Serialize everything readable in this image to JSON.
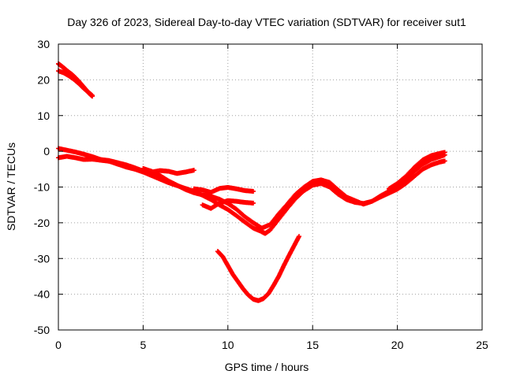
{
  "chart_data": {
    "type": "scatter",
    "title": "Day 326 of 2023, Sidereal Day-to-day VTEC variation (SDTVAR) for receiver sut1",
    "xlabel": "GPS time / hours",
    "ylabel": "SDTVAR / TECUs",
    "xlim": [
      0,
      25
    ],
    "ylim": [
      -50,
      30
    ],
    "xticks": [
      0,
      5,
      10,
      15,
      20,
      25
    ],
    "yticks": [
      -50,
      -40,
      -30,
      -20,
      -10,
      0,
      10,
      20,
      30
    ],
    "grid": true,
    "marker_color": "#ff0000",
    "series": [
      {
        "name": "segment-high-start",
        "x": [
          0.0,
          0.2,
          0.4,
          0.6,
          0.8,
          1.0,
          1.2,
          1.4,
          1.6,
          1.8,
          2.0
        ],
        "y": [
          24.5,
          23.8,
          23.0,
          22.2,
          21.5,
          20.6,
          19.6,
          18.5,
          17.4,
          16.3,
          15.4
        ]
      },
      {
        "name": "segment-high-start-b",
        "x": [
          0.0,
          0.3,
          0.6,
          0.9,
          1.2,
          1.5,
          1.8,
          2.0
        ],
        "y": [
          22.5,
          22.0,
          21.2,
          20.2,
          19.0,
          17.6,
          16.4,
          15.6
        ]
      },
      {
        "name": "segment-main-a",
        "x": [
          0.0,
          0.5,
          1.0,
          1.5,
          2.0,
          2.5,
          3.0,
          3.5,
          4.0,
          4.5,
          5.0,
          5.5,
          6.0,
          6.5,
          7.0,
          7.5,
          8.0
        ],
        "y": [
          0.8,
          0.3,
          -0.2,
          -0.8,
          -1.5,
          -2.3,
          -2.6,
          -3.2,
          -3.8,
          -4.6,
          -5.5,
          -5.8,
          -5.4,
          -5.6,
          -6.2,
          -5.8,
          -5.3
        ]
      },
      {
        "name": "segment-main-b",
        "x": [
          0.0,
          0.5,
          1.0,
          1.5,
          2.0,
          2.5,
          3.0,
          3.5,
          4.0,
          4.5,
          5.0,
          5.5,
          6.0,
          6.5,
          7.0,
          7.5,
          8.0,
          8.5,
          9.0,
          9.5,
          10.0,
          10.5,
          11.0,
          11.5,
          12.0,
          12.2,
          12.5,
          13.0,
          13.5,
          14.0,
          14.5,
          15.0,
          15.5,
          16.0,
          16.5,
          17.0,
          17.5,
          18.0,
          18.5,
          19.0,
          19.5,
          20.0,
          20.5,
          21.0,
          21.5,
          22.0,
          22.5,
          22.8
        ],
        "y": [
          -1.8,
          -1.4,
          -1.8,
          -2.3,
          -2.2,
          -2.5,
          -2.8,
          -3.6,
          -4.4,
          -5.0,
          -5.8,
          -6.8,
          -7.8,
          -8.8,
          -9.6,
          -10.4,
          -11.2,
          -12.3,
          -13.5,
          -15.0,
          -16.3,
          -18.0,
          -19.8,
          -21.5,
          -22.5,
          -23.0,
          -22.0,
          -19.0,
          -16.0,
          -13.2,
          -11.0,
          -9.5,
          -9.0,
          -10.0,
          -12.0,
          -13.5,
          -14.3,
          -14.6,
          -14.0,
          -12.8,
          -11.7,
          -10.6,
          -9.0,
          -7.0,
          -5.0,
          -3.8,
          -3.0,
          -2.7
        ]
      },
      {
        "name": "segment-main-c",
        "x": [
          5.0,
          5.5,
          6.0,
          6.5,
          7.0,
          7.5,
          8.0,
          8.5,
          9.0,
          9.5,
          10.0,
          10.5,
          11.0,
          11.5,
          12.0,
          12.5,
          13.0,
          13.5,
          14.0,
          14.5,
          15.0,
          15.5,
          16.0,
          16.5,
          17.0,
          17.5,
          18.0,
          18.5,
          19.0,
          19.5,
          20.0,
          20.5,
          21.0,
          21.5,
          22.0,
          22.5,
          22.8
        ],
        "y": [
          -4.8,
          -5.6,
          -6.8,
          -8.3,
          -9.5,
          -10.7,
          -11.6,
          -12.2,
          -12.6,
          -13.4,
          -14.6,
          -16.2,
          -18.3,
          -20.0,
          -21.5,
          -20.5,
          -17.5,
          -14.8,
          -12.0,
          -10.0,
          -8.4,
          -8.0,
          -8.7,
          -10.8,
          -12.8,
          -13.8,
          -14.8,
          -14.0,
          -12.5,
          -11.2,
          -10.0,
          -8.0,
          -5.6,
          -3.6,
          -2.3,
          -1.5,
          -1.0
        ]
      },
      {
        "name": "segment-cluster-9",
        "x": [
          8.0,
          8.5,
          9.0,
          9.5,
          10.0,
          10.5,
          11.0,
          11.5
        ],
        "y": [
          -10.5,
          -10.8,
          -11.5,
          -10.4,
          -10.1,
          -10.5,
          -11.0,
          -11.2
        ]
      },
      {
        "name": "segment-cluster-9b",
        "x": [
          8.5,
          9.0,
          9.5,
          10.0,
          10.5,
          11.0,
          11.5
        ],
        "y": [
          -15.0,
          -16.0,
          -14.5,
          -13.8,
          -14.0,
          -14.3,
          -14.5
        ]
      },
      {
        "name": "segment-deep-dip",
        "x": [
          9.4,
          9.7,
          10.0,
          10.3,
          10.6,
          10.9,
          11.2,
          11.5,
          11.8,
          12.1,
          12.4,
          12.7,
          13.0,
          13.3,
          13.6,
          13.9,
          14.2
        ],
        "y": [
          -28.0,
          -29.5,
          -32.0,
          -34.5,
          -36.5,
          -38.5,
          -40.2,
          -41.4,
          -41.8,
          -41.2,
          -39.8,
          -37.5,
          -35.0,
          -32.0,
          -29.2,
          -26.5,
          -23.8
        ]
      },
      {
        "name": "segment-late-upper",
        "x": [
          19.5,
          20.0,
          20.5,
          21.0,
          21.5,
          22.0,
          22.5,
          22.8
        ],
        "y": [
          -10.5,
          -9.0,
          -7.0,
          -4.5,
          -2.4,
          -1.2,
          -0.6,
          -0.3
        ]
      }
    ]
  }
}
